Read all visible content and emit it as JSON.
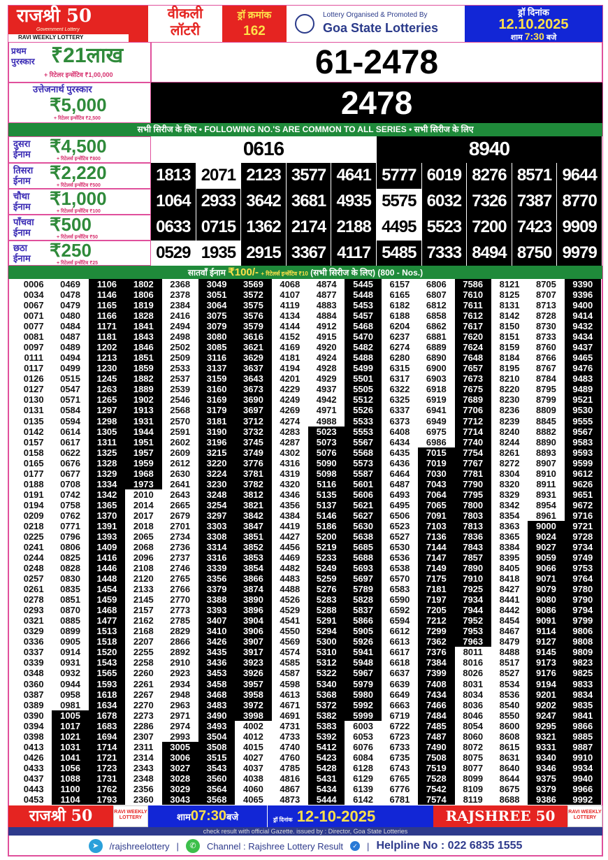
{
  "colors": {
    "border": "#e0509c",
    "red": "#e52421",
    "green": "#1f8a3a",
    "blue": "#1226d6",
    "navy": "#2e3a8c",
    "yellow": "#ffe14a"
  },
  "header": {
    "brand": "राजश्री 50",
    "brand_sub": "Government Lottery",
    "brand_tag": "RAVI WEEKLY LOTTERY",
    "weekly_1": "वीकली",
    "weekly_2": "लॉटरी",
    "draw_label": "ड्रॉ क्रमांक",
    "draw_no": "162",
    "org_small": "Lottery Organised & Promoted By",
    "org_big": "Goa State Lotteries",
    "date_label": "ड्रॉ दिनांक",
    "date": "12.10.2025",
    "time_pre": "शाम",
    "time": "7:30",
    "time_post": "बजे"
  },
  "first": {
    "label_1": "प्रथम",
    "label_2": "पुरस्कार",
    "amount": "₹21लाख",
    "incentive": "+ रिटेलर इन्सेंटिव ₹1,00,000",
    "number": "61-2478"
  },
  "consolation": {
    "label": "उत्तेजनार्थ पुरस्कार",
    "amount": "₹5,000",
    "incentive": "+ रिटेलर इन्सेंटिव ₹2,500",
    "number": "2478"
  },
  "common_banner": "सभी सिरीज के लिए  •  FOLLOWING NO.'S ARE COMMON TO ALL SERIES  •  सभी सिरीज के लिए",
  "prizes": [
    {
      "label_1": "दुसरा",
      "label_2": "ईनाम",
      "amount": "₹4,500",
      "incentive": "+ रिटेलर्स इन्सेंटिव ₹800",
      "numbers": [
        "0616",
        "8940"
      ],
      "white": [
        0
      ]
    },
    {
      "label_1": "तिसरा",
      "label_2": "ईनाम",
      "amount": "₹2,220",
      "incentive": "+ रिटेलर्स इन्सेंटिव ₹500",
      "numbers": [
        "1813",
        "2071",
        "2123",
        "3577",
        "4641",
        "5777",
        "6019",
        "8276",
        "8571",
        "9644"
      ],
      "white": [
        1
      ]
    },
    {
      "label_1": "चौथा",
      "label_2": "ईनाम",
      "amount": "₹1,000",
      "incentive": "+ रिटेलर्स इन्सेंटिव ₹100",
      "numbers": [
        "1064",
        "2933",
        "3642",
        "3681",
        "4935",
        "5575",
        "6032",
        "7326",
        "7387",
        "8770"
      ],
      "white": [
        5
      ]
    },
    {
      "label_1": "पाँचवा",
      "label_2": "ईनाम",
      "amount": "₹500",
      "incentive": "+ रिटेलर्स इन्सेंटिव ₹50",
      "numbers": [
        "0633",
        "0715",
        "1362",
        "2174",
        "2188",
        "4495",
        "5523",
        "7200",
        "7423",
        "9909"
      ],
      "white": [
        5
      ]
    },
    {
      "label_1": "छठा",
      "label_2": "ईनाम",
      "amount": "₹250",
      "incentive": "+ रिटेलर्स इन्सेंटिव ₹25",
      "numbers": [
        "0529",
        "1935",
        "2915",
        "3367",
        "4117",
        "5485",
        "7333",
        "8494",
        "8750",
        "9979"
      ],
      "white": [
        0,
        1
      ]
    }
  ],
  "seventh": {
    "label": "सातवाँ ईनाम",
    "amount": "₹100/-",
    "incentive": "+ रिटेलर्स इन्सेंटिव ₹10",
    "note": "(सभी सिरीज के लिए)",
    "count": "(800 - Nos.)",
    "columns": [
      "0006 0034 0067 0071 0077 0081 0097 0111 0117 0126 0127 0130 0131 0135 0142 0157 0158 0165 0177 0188 0191 0194 0209 0218 0225 0241 0244 0248 0257 0261 0278 0293 0321 0329 0336 0337 0339 0348 0360 0387 0389 0390 0394 0398 0413 0426 0433 0437 0443 0453",
      "0469 0478 0479 0480 0484 0487 0489 0494 0499 0515 0547 0571 0584 0594 0614 0617 0622 0676 0677 0708 0742 0758 0762 0771 0796 0806 0825 0828 0830 0835 0851 0870 0885 0899 0905 0914 0931 0932 0944 0958 0981 1005 1017 1021 1031 1041 1056 1088 1100 1104",
      "1106 1146 1165 1166 1171 1181 1202 1213 1230 1245 1263 1265 1297 1298 1305 1311 1325 1328 1329 1334 1342 1365 1370 1391 1393 1409 1416 1446 1448 1454 1459 1468 1477 1513 1518 1520 1543 1565 1593 1618 1634 1678 1683 1694 1714 1721 1723 1731 1762 1793",
      "1802 1806 1819 1828 1841 1843 1846 1851 1859 1882 1889 1902 1913 1931 1944 1951 1957 1959 1968 1973 2010 2014 2017 2018 2065 2068 2096 2108 2120 2133 2145 2157 2162 2168 2207 2255 2258 2260 2261 2267 2270 2273 2286 2307 2311 2314 2343 2348 2356 2360",
      "2368 2378 2384 2416 2494 2498 2502 2509 2533 2537 2539 2546 2568 2570 2591 2602 2609 2612 2630 2641 2643 2665 2679 2701 2734 2736 2737 2746 2765 2766 2770 2773 2785 2829 2866 2892 2910 2923 2934 2948 2963 2971 2974 2993 3005 3006 3027 3028 3029 3043",
      "3049 3051 3064 3075 3079 3080 3085 3116 3137 3159 3160 3169 3179 3181 3190 3196 3215 3220 3224 3230 3248 3254 3297 3303 3308 3314 3316 3339 3356 3379 3388 3393 3407 3410 3426 3435 3436 3453 3458 3468 3483 3490 3493 3504 3508 3515 3543 3560 3564 3568",
      "3569 3572 3575 3576 3579 3616 3621 3629 3637 3643 3673 3690 3697 3712 3732 3745 3749 3776 3781 3782 3812 3821 3842 3847 3851 3852 3853 3854 3866 3874 3890 3896 3904 3906 3907 3917 3923 3926 3957 3958 3972 3998 4002 4012 4015 4027 4037 4038 4060 4065",
      "4068 4107 4119 4134 4144 4152 4169 4181 4194 4201 4229 4249 4269 4274 4283 4287 4302 4316 4319 4320 4346 4356 4384 4419 4427 4456 4469 4482 4483 4488 4526 4529 4541 4550 4569 4574 4585 4587 4598 4613 4671 4691 4731 4733 4740 4760 4785 4816 4867 4873",
      "4874 4877 4883 4884 4912 4915 4920 4924 4928 4929 4937 4942 4971 4988 5023 5073 5076 5090 5098 5116 5135 5137 5146 5186 5200 5219 5233 5249 5259 5276 5283 5288 5291 5294 5300 5310 5312 5322 5340 5368 5372 5382 5383 5392 5412 5423 5428 5431 5434 5444",
      "5445 5448 5453 5457 5468 5470 5482 5488 5499 5501 5505 5512 5526 5533 5553 5567 5568 5573 5587 5601 5606 5621 5627 5630 5638 5685 5688 5693 5697 5789 5828 5837 5866 5905 5926 5941 5948 5967 5979 5980 5992 5999 6003 6053 6076 6084 6128 6129 6139 6142",
      "6157 6165 6182 6188 6204 6237 6274 6280 6315 6317 6322 6325 6337 6373 6408 6434 6435 6436 6464 6487 6493 6495 6506 6523 6527 6530 6536 6538 6570 6583 6590 6592 6594 6612 6613 6617 6618 6637 6639 6649 6663 6719 6722 6723 6733 6735 6743 6765 6776 6781",
      "6806 6807 6812 6858 6862 6881 6889 6890 6900 6903 6918 6919 6941 6949 6975 6986 7015 7019 7030 7043 7064 7065 7091 7103 7136 7144 7147 7149 7175 7181 7197 7205 7212 7299 7362 7376 7384 7399 7408 7434 7466 7484 7485 7487 7490 7508 7519 7528 7542 7574",
      "7586 7610 7611 7612 7617 7620 7624 7648 7657 7673 7675 7689 7706 7712 7714 7740 7754 7767 7781 7790 7795 7800 7803 7813 7836 7843 7857 7890 7910 7925 7934 7944 7952 7953 7963 8011 8016 8026 8031 8034 8036 8046 8054 8060 8072 8075 8077 8099 8109 8119",
      "8121 8125 8131 8142 8150 8151 8159 8184 8195 8210 8220 8230 8236 8239 8240 8244 8261 8272 8304 8320 8329 8342 8354 8363 8365 8384 8395 8405 8418 8427 8441 8442 8454 8467 8479 8488 8517 8527 8534 8536 8540 8550 8600 8608 8615 8631 8640 8644 8675 8688",
      "8705 8707 8713 8728 8730 8733 8760 8766 8767 8784 8795 8799 8809 8845 8882 8890 8893 8907 8910 8911 8931 8954 8961 9000 9024 9027 9059 9066 9071 9079 9080 9086 9091 9114 9127 9145 9173 9176 9194 9201 9202 9247 9295 9321 9331 9340 9346 9375 9379 9386",
      "9390 9396 9400 9414 9432 9434 9437 9465 9476 9483 9489 9521 9530 9555 9567 9583 9593 9599 9612 9626 9651 9672 9716 9721 9728 9734 9749 9753 9764 9780 9790 9794 9799 9806 9808 9809 9823 9825 9833 9834 9835 9841 9866 9885 9887 9910 9934 9940 9966 9992"
    ]
  },
  "footer": {
    "brand": "राजश्री 50",
    "ravi": "RAVI WEEKLY LOTTERY",
    "time_pre": "शाम",
    "time": "07:30",
    "time_post": "बजे",
    "date_label": "ड्रॉ दिनांक",
    "date": "12-10-2025",
    "brand_en": "RAJSHREE 50",
    "note": "check result with official Gazette. issued by : Director, Goa State Lotteries",
    "telegram": "/rajshreelottery",
    "channel": "Channel : Rajshree Lottery Result",
    "helpline": "Helpline No : 022 6835 1555"
  }
}
